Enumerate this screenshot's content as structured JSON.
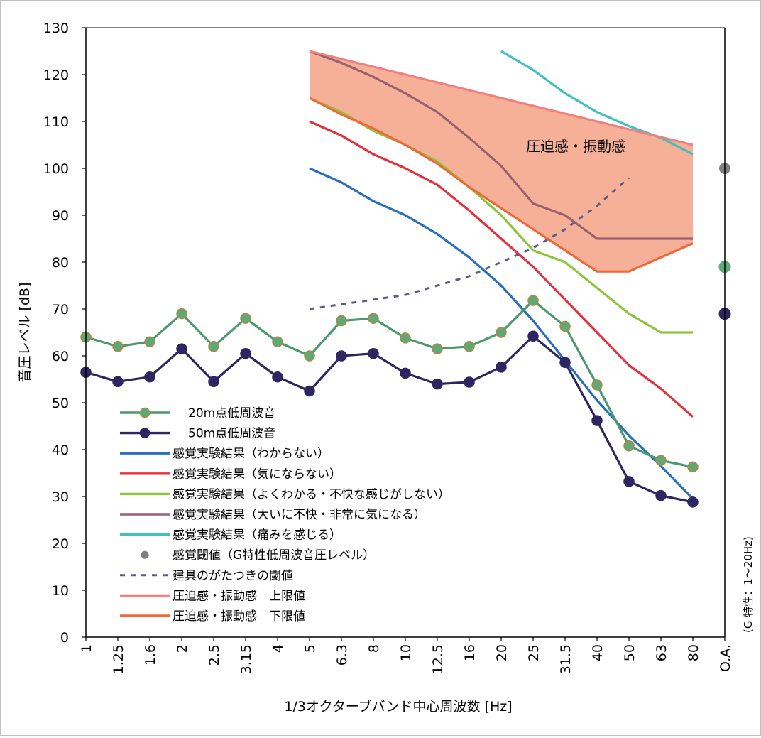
{
  "chart_data": {
    "type": "line",
    "xlabel": "1/3オクターブバンド中心周波数 [Hz]",
    "ylabel": "音圧レベル [dB]",
    "ylim": [
      0,
      130
    ],
    "yticks": [
      0,
      10,
      20,
      30,
      40,
      50,
      60,
      70,
      80,
      90,
      100,
      110,
      120,
      130
    ],
    "categories": [
      "1",
      "1.25",
      "1.6",
      "2",
      "2.5",
      "3.15",
      "4",
      "5",
      "6.3",
      "8",
      "10",
      "12.5",
      "16",
      "20",
      "25",
      "31.5",
      "40",
      "50",
      "63",
      "80",
      "O.A."
    ],
    "oa_note": "(G 特性：1～20Hz)",
    "annotation": "圧迫感・振動感",
    "grid": false,
    "legend_position": "lower-left",
    "series": [
      {
        "name": "20m点低周波音",
        "color": "#4a9a6c",
        "marker_fill": "#5fa878",
        "marker_edge": "#b08a3e",
        "x": [
          "1",
          "1.25",
          "1.6",
          "2",
          "2.5",
          "3.15",
          "4",
          "5",
          "6.3",
          "8",
          "10",
          "12.5",
          "16",
          "20",
          "25",
          "31.5",
          "40",
          "50",
          "63",
          "80"
        ],
        "values": [
          64,
          62,
          63,
          69,
          62,
          68,
          63,
          60,
          67.5,
          68,
          63.8,
          61.5,
          62,
          65,
          71.8,
          66.3,
          53.8,
          40.8,
          37.7,
          36.3
        ],
        "oa": 79
      },
      {
        "name": "50m点低周波音",
        "color": "#2e2660",
        "marker_fill": "#2e2660",
        "marker_edge": "#2e2660",
        "x": [
          "1",
          "1.25",
          "1.6",
          "2",
          "2.5",
          "3.15",
          "4",
          "5",
          "6.3",
          "8",
          "10",
          "12.5",
          "16",
          "20",
          "25",
          "31.5",
          "40",
          "50",
          "63",
          "80"
        ],
        "values": [
          56.5,
          54.5,
          55.5,
          61.5,
          54.5,
          60.5,
          55.5,
          52.5,
          60,
          60.5,
          56.3,
          54,
          54.4,
          57.6,
          64.2,
          58.6,
          46.2,
          33.2,
          30.2,
          28.8
        ],
        "oa": 69
      },
      {
        "name": "感覚実験結果（わからない）",
        "color": "#2a6fbd",
        "x": [
          "5",
          "6.3",
          "8",
          "10",
          "12.5",
          "16",
          "20",
          "25",
          "31.5",
          "40",
          "50",
          "63",
          "80"
        ],
        "values": [
          100,
          97,
          93,
          90,
          86,
          81,
          75,
          67.5,
          59,
          50.5,
          43,
          36.5,
          29.5
        ]
      },
      {
        "name": "感覚実験結果（気にならない）",
        "color": "#e8303a",
        "x": [
          "5",
          "6.3",
          "8",
          "10",
          "12.5",
          "16",
          "20",
          "25",
          "31.5",
          "40",
          "50",
          "63",
          "80"
        ],
        "values": [
          110,
          107,
          103,
          100,
          96.5,
          91,
          85,
          79,
          72,
          65,
          58,
          53,
          47
        ]
      },
      {
        "name": "感覚実験結果（よくわかる・不快な感じがしない）",
        "color": "#8cc63f",
        "x": [
          "5",
          "6.3",
          "8",
          "10",
          "12.5",
          "16",
          "20",
          "25",
          "31.5",
          "40",
          "50",
          "63",
          "80"
        ],
        "values": [
          115,
          112,
          108,
          105,
          101.5,
          96,
          90,
          82.5,
          80,
          74.5,
          69,
          65,
          65
        ]
      },
      {
        "name": "感覚実験結果（大いに不快・非常に気になる）",
        "color": "#9a6070",
        "x": [
          "5",
          "6.3",
          "8",
          "10",
          "12.5",
          "16",
          "20",
          "25",
          "31.5",
          "40",
          "50",
          "63",
          "80"
        ],
        "values": [
          125,
          122.5,
          119.5,
          116,
          112,
          106.5,
          100.5,
          92.5,
          90,
          85,
          85,
          85,
          85
        ]
      },
      {
        "name": "感覚実験結果（痛みを感じる）",
        "color": "#40c0c0",
        "x": [
          "20",
          "25",
          "31.5",
          "40",
          "50",
          "63",
          "80"
        ],
        "values": [
          125,
          121,
          116,
          112,
          109,
          106.5,
          103
        ]
      },
      {
        "name": "感覚閾値（G特性低周波音圧レベル）",
        "color": "#808080",
        "x": [
          "O.A."
        ],
        "values": [
          100
        ]
      },
      {
        "name": "建具のがたつきの閾値",
        "color": "#5c5c8c",
        "dashed": true,
        "x": [
          "5",
          "6.3",
          "8",
          "10",
          "12.5",
          "16",
          "20",
          "25",
          "31.5",
          "40",
          "50"
        ],
        "values": [
          70,
          71,
          72,
          73,
          75,
          77,
          80,
          83,
          87,
          92,
          98
        ]
      },
      {
        "name": "圧迫感・振動感　上限値",
        "color": "#f08080",
        "x": [
          "5",
          "80"
        ],
        "values": [
          125,
          105
        ]
      },
      {
        "name": "圧迫感・振動感　下限値",
        "color": "#f06838",
        "x": [
          "5",
          "6.3",
          "8",
          "10",
          "12.5",
          "16",
          "20",
          "25",
          "31.5",
          "40",
          "50",
          "63",
          "80"
        ],
        "values": [
          115,
          111.5,
          108.5,
          105,
          101,
          96,
          91.5,
          87,
          82.5,
          78,
          78,
          81,
          84
        ]
      }
    ],
    "band_fill": "#f6b098"
  }
}
